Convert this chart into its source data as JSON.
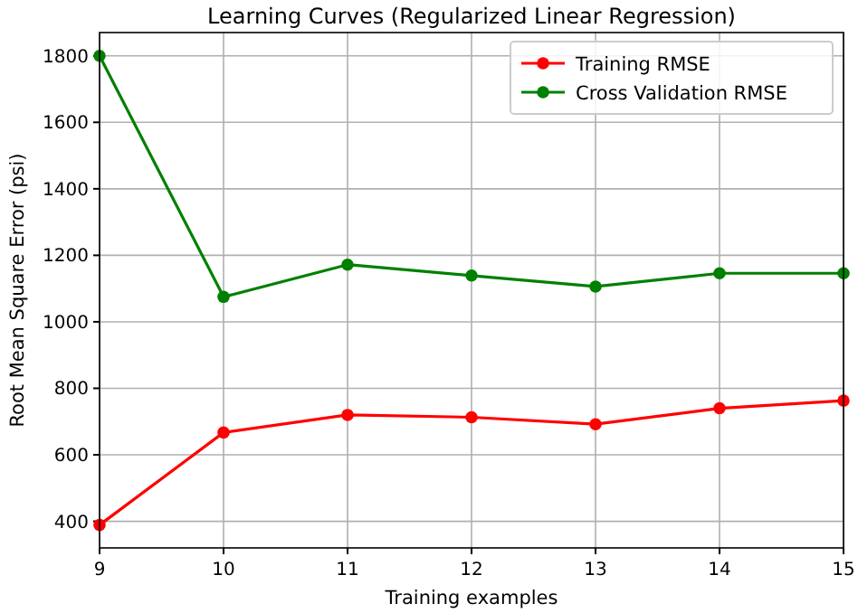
{
  "chart_data": {
    "type": "line",
    "title": "Learning Curves (Regularized Linear Regression)",
    "xlabel": "Training examples",
    "ylabel": "Root Mean Square Error (psi)",
    "x": [
      9,
      10,
      11,
      12,
      13,
      14,
      15
    ],
    "series": [
      {
        "name": "Training RMSE",
        "color": "#ff0000",
        "values": [
          389,
          667,
          720,
          713,
          692,
          740,
          763
        ]
      },
      {
        "name": "Cross Validation RMSE",
        "color": "#008000",
        "values": [
          1800,
          1075,
          1172,
          1139,
          1106,
          1146,
          1146
        ]
      }
    ],
    "xlim": [
      9,
      15
    ],
    "xticks": [
      9,
      10,
      11,
      12,
      13,
      14,
      15
    ],
    "ylim": [
      320,
      1870
    ],
    "yticks": [
      400,
      600,
      800,
      1000,
      1200,
      1400,
      1600,
      1800
    ],
    "grid": true,
    "legend": "top right",
    "marker": "circle",
    "line_style": "solid"
  }
}
